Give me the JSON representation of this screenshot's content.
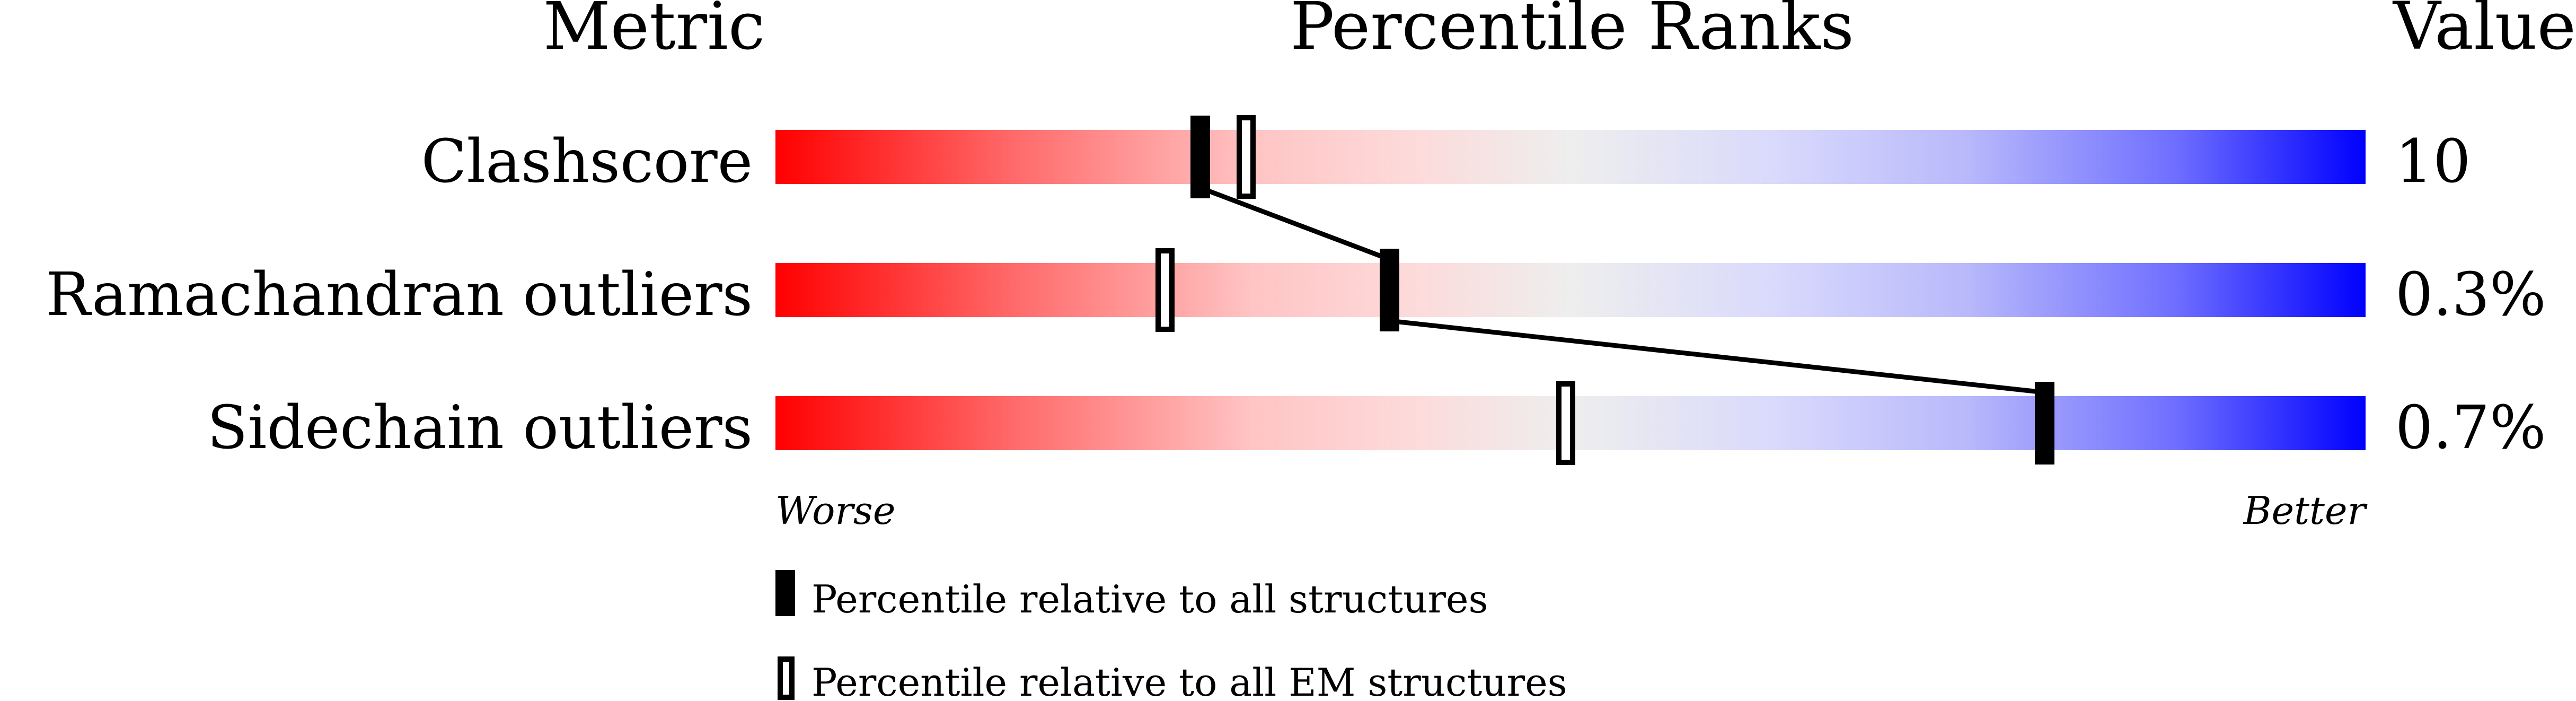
{
  "chart_data": {
    "type": "percentile-slider",
    "headers": {
      "metric": "Metric",
      "ranks": "Percentile Ranks",
      "value": "Value"
    },
    "metrics": [
      {
        "name": "Clashscore",
        "value": "10",
        "percentile_all": 26.7,
        "percentile_em": 29.6
      },
      {
        "name": "Ramachandran outliers",
        "value": "0.3%",
        "percentile_all": 38.6,
        "percentile_em": 24.5
      },
      {
        "name": "Sidechain outliers",
        "value": "0.7%",
        "percentile_all": 79.8,
        "percentile_em": 49.7
      }
    ],
    "axis": {
      "left_label": "Worse",
      "right_label": "Better",
      "range": [
        0,
        100
      ]
    },
    "legend": {
      "all": "Percentile relative to all structures",
      "em": "Percentile relative to all EM structures"
    },
    "colors": {
      "worse": "#ff0000",
      "mid": "#eeeeee",
      "better": "#0000ff",
      "marker": "#000000"
    }
  }
}
